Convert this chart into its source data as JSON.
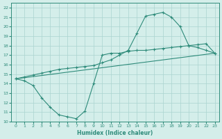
{
  "line1_x": [
    0,
    1,
    2,
    3,
    4,
    5,
    6,
    7,
    8,
    9,
    10,
    11,
    12,
    13,
    14,
    15,
    16,
    17,
    18,
    19,
    20,
    21,
    22,
    23
  ],
  "line1_y": [
    14.5,
    14.3,
    13.8,
    12.5,
    11.5,
    10.7,
    10.5,
    10.3,
    11.1,
    14.0,
    17.0,
    17.2,
    17.2,
    17.4,
    17.5,
    17.5,
    17.6,
    17.7,
    17.8,
    17.9,
    18.0,
    18.1,
    18.2,
    17.2
  ],
  "line2_x": [
    0,
    1,
    2,
    3,
    4,
    5,
    6,
    7,
    8,
    9,
    10,
    11,
    12,
    13,
    14,
    15,
    16,
    17,
    18,
    19,
    20,
    21,
    22,
    23
  ],
  "line2_y": [
    14.5,
    14.7,
    14.9,
    15.1,
    15.3,
    15.5,
    15.6,
    15.7,
    15.8,
    15.9,
    16.2,
    16.5,
    17.0,
    17.5,
    19.3,
    21.1,
    21.3,
    21.5,
    21.0,
    20.0,
    18.0,
    17.8,
    17.5,
    17.2
  ],
  "line3_x": [
    0,
    23
  ],
  "line3_y": [
    14.5,
    17.2
  ],
  "line_color": "#2e8b7a",
  "bg_color": "#d4eeea",
  "grid_color": "#aad4cf",
  "xlabel": "Humidex (Indice chaleur)",
  "xlim": [
    -0.5,
    23.5
  ],
  "ylim": [
    10,
    22.5
  ],
  "yticks": [
    10,
    11,
    12,
    13,
    14,
    15,
    16,
    17,
    18,
    19,
    20,
    21,
    22
  ],
  "xticks": [
    0,
    1,
    2,
    3,
    4,
    5,
    6,
    7,
    8,
    9,
    10,
    11,
    12,
    13,
    14,
    15,
    16,
    17,
    18,
    19,
    20,
    21,
    22,
    23
  ]
}
